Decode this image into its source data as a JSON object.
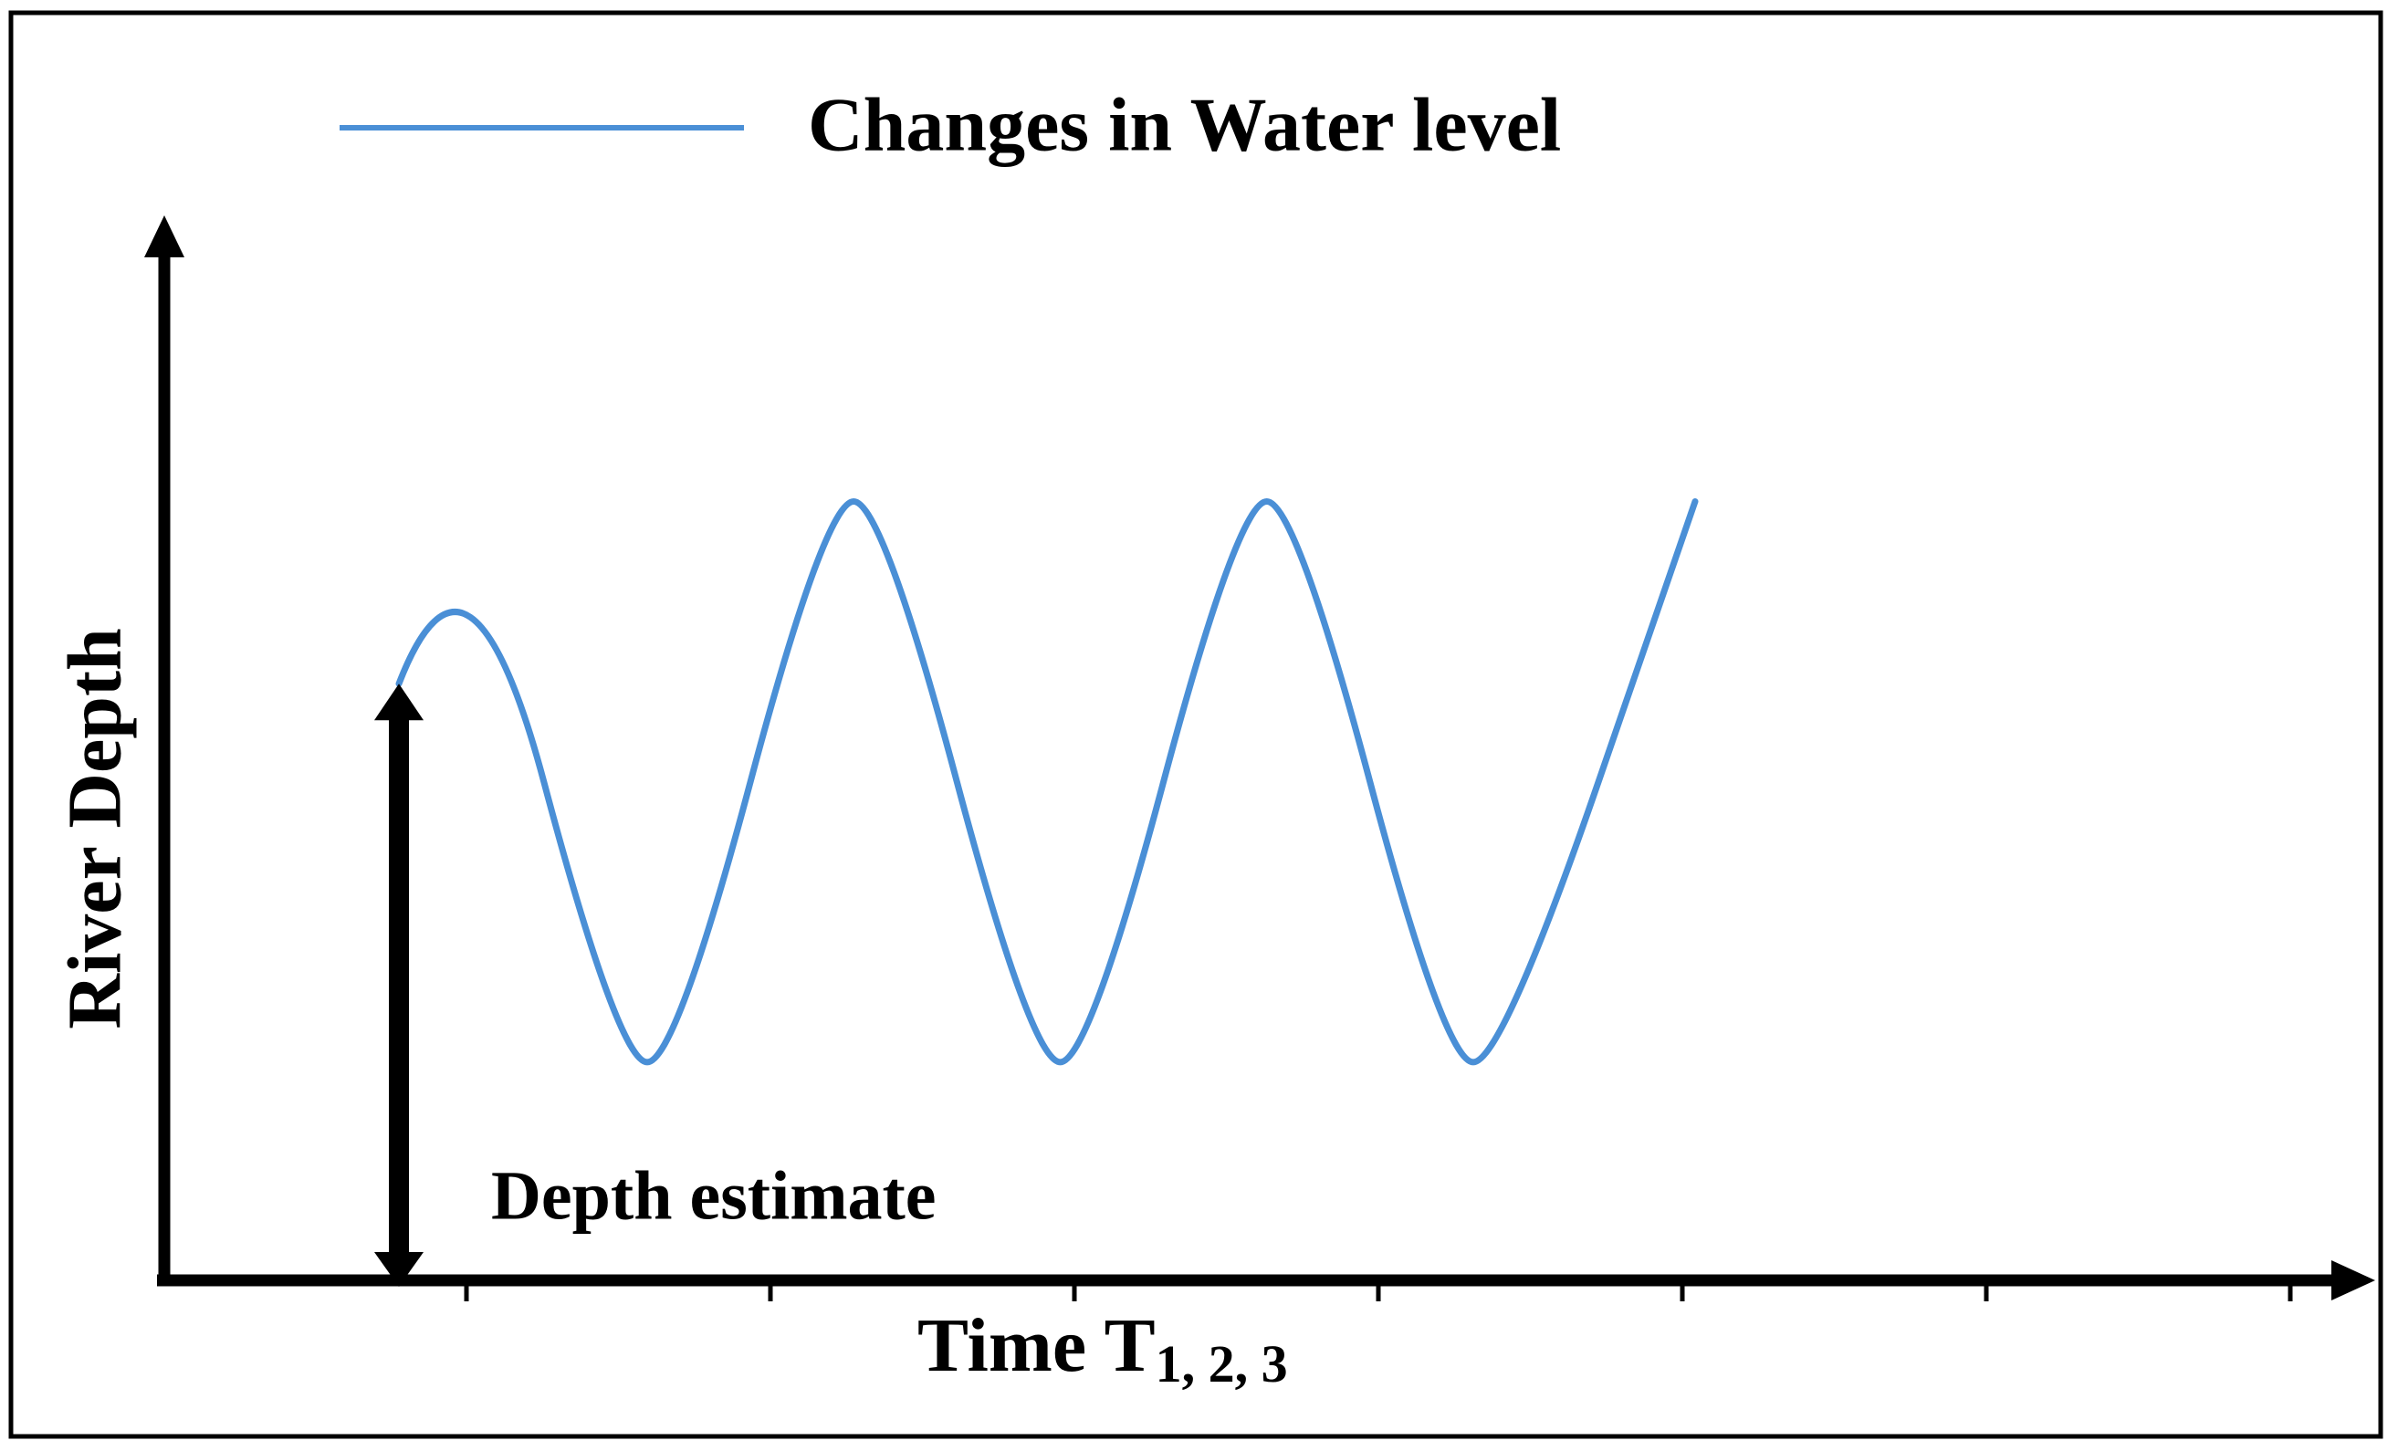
{
  "legend": {
    "label": "Changes in Water level",
    "line_color": "#4a8fd6"
  },
  "axes": {
    "y_label": "River Depth",
    "x_label_main": "Time T",
    "x_label_sub": "1, 2, 3"
  },
  "annotation": {
    "label": "Depth estimate"
  },
  "colors": {
    "axis": "#000000",
    "frame": "#000000",
    "background": "#ffffff"
  },
  "chart_data": {
    "type": "line",
    "title": "Changes in Water level",
    "xlabel": "Time T1, 2, 3",
    "ylabel": "River Depth",
    "series": [
      {
        "name": "Changes in Water level",
        "points": [
          [
            0.0,
            0.6
          ],
          [
            0.16,
            0.86
          ],
          [
            0.5,
            0.06
          ],
          [
            0.63,
            0.06
          ],
          [
            0.97,
            0.86
          ],
          [
            1.1,
            0.86
          ],
          [
            1.44,
            0.06
          ],
          [
            1.57,
            0.06
          ],
          [
            1.91,
            0.86
          ],
          [
            2.04,
            0.86
          ],
          [
            2.38,
            0.06
          ],
          [
            2.51,
            0.06
          ],
          [
            2.95,
            0.86
          ]
        ]
      }
    ],
    "depth_estimate": 0.6,
    "xlim": [
      0,
      3.1
    ],
    "ylim": [
      0,
      1
    ]
  }
}
